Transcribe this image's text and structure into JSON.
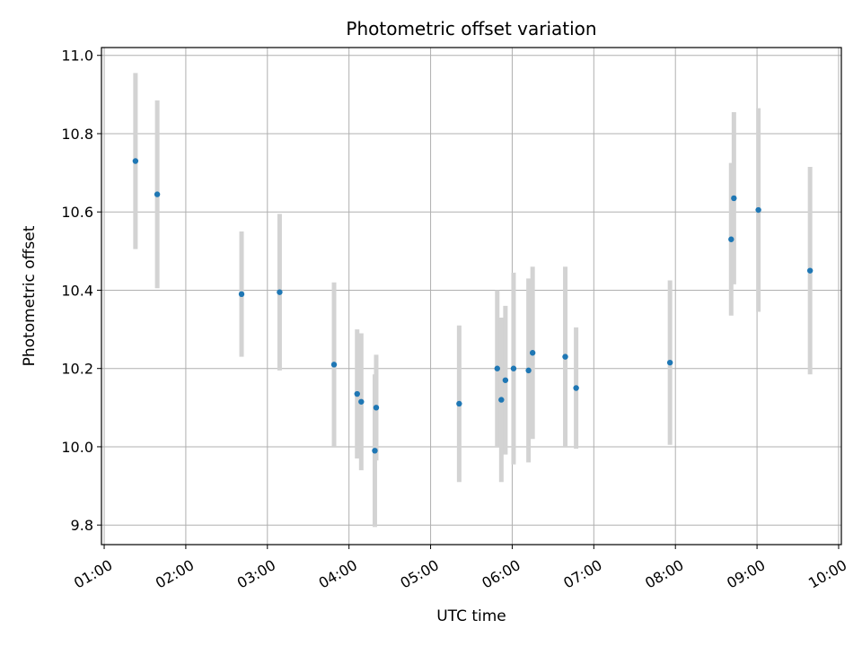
{
  "chart_data": {
    "type": "scatter",
    "title": "Photometric offset variation",
    "xlabel": "UTC time",
    "ylabel": "Photometric offset",
    "x_ticks": [
      "01:00",
      "02:00",
      "03:00",
      "04:00",
      "05:00",
      "06:00",
      "07:00",
      "08:00",
      "09:00",
      "10:00"
    ],
    "y_ticks": [
      "9.8",
      "10.0",
      "10.2",
      "10.4",
      "10.6",
      "10.8",
      "11.0"
    ],
    "xlim": [
      "00:58",
      "10:02"
    ],
    "ylim": [
      9.75,
      11.02
    ],
    "grid": true,
    "point_color": "#1f77b4",
    "errorbar_color": "#d3d3d3",
    "points": [
      {
        "x": "01:23",
        "y": 10.73,
        "err": 0.225
      },
      {
        "x": "01:39",
        "y": 10.645,
        "err": 0.24
      },
      {
        "x": "02:41",
        "y": 10.39,
        "err": 0.16
      },
      {
        "x": "03:09",
        "y": 10.395,
        "err": 0.2
      },
      {
        "x": "03:49",
        "y": 10.21,
        "err": 0.21
      },
      {
        "x": "04:06",
        "y": 10.135,
        "err": 0.165
      },
      {
        "x": "04:09",
        "y": 10.115,
        "err": 0.175
      },
      {
        "x": "04:19",
        "y": 9.99,
        "err": 0.195
      },
      {
        "x": "04:20",
        "y": 10.1,
        "err": 0.135
      },
      {
        "x": "05:21",
        "y": 10.11,
        "err": 0.2
      },
      {
        "x": "05:49",
        "y": 10.2,
        "err": 0.2
      },
      {
        "x": "05:52",
        "y": 10.12,
        "err": 0.21
      },
      {
        "x": "05:55",
        "y": 10.17,
        "err": 0.19
      },
      {
        "x": "06:01",
        "y": 10.2,
        "err": 0.245
      },
      {
        "x": "06:12",
        "y": 10.195,
        "err": 0.235
      },
      {
        "x": "06:15",
        "y": 10.24,
        "err": 0.22
      },
      {
        "x": "06:39",
        "y": 10.23,
        "err": 0.23
      },
      {
        "x": "06:47",
        "y": 10.15,
        "err": 0.155
      },
      {
        "x": "07:56",
        "y": 10.215,
        "err": 0.21
      },
      {
        "x": "08:41",
        "y": 10.53,
        "err": 0.195
      },
      {
        "x": "08:43",
        "y": 10.635,
        "err": 0.22
      },
      {
        "x": "09:01",
        "y": 10.605,
        "err": 0.26
      },
      {
        "x": "09:39",
        "y": 10.45,
        "err": 0.265
      }
    ]
  }
}
